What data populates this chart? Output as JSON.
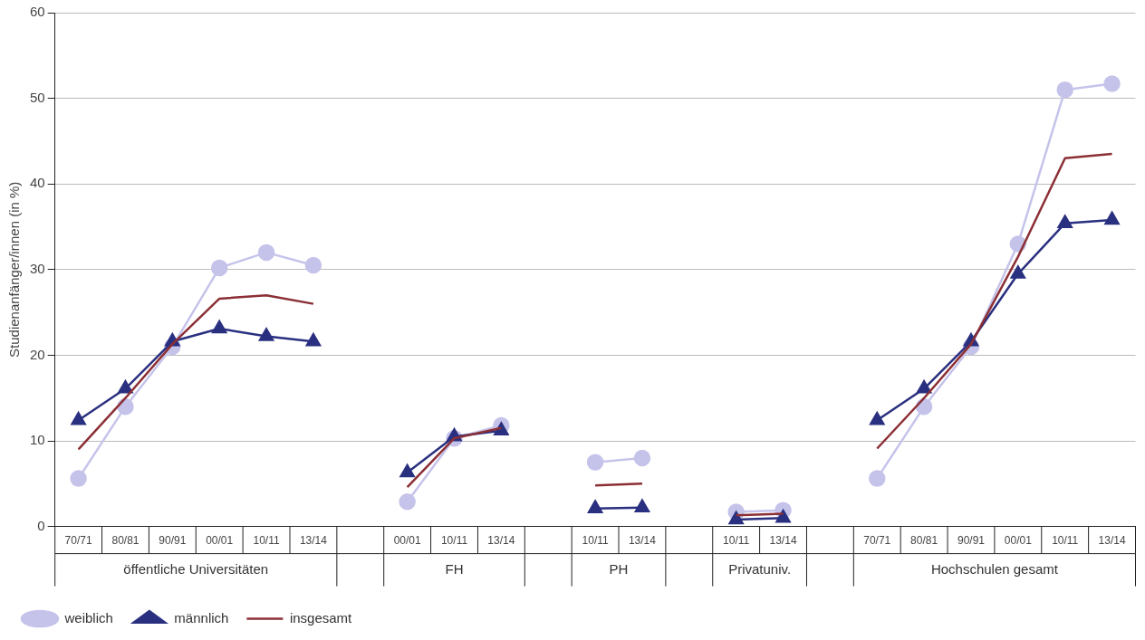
{
  "chart_data": {
    "type": "line",
    "ylabel": "Studienanfänger/innen (in %)",
    "categories": [
      "70/71",
      "80/81",
      "90/91",
      "00/01",
      "10/11",
      "13/14",
      null,
      "00/01",
      "10/11",
      "13/14",
      null,
      "10/11",
      "13/14",
      null,
      "10/11",
      "13/14",
      null,
      "70/71",
      "80/81",
      "90/91",
      "00/01",
      "10/11",
      "13/14"
    ],
    "series": [
      {
        "name": "weiblich",
        "color": "#c5c3ea",
        "marker": "circle",
        "values": [
          5.6,
          14,
          21,
          30.2,
          32,
          30.5,
          null,
          2.9,
          10.3,
          11.8,
          null,
          7.5,
          8,
          null,
          1.7,
          1.9,
          null,
          5.6,
          14,
          21,
          33,
          51,
          51.7
        ]
      },
      {
        "name": "männlich",
        "color": "#2a3080",
        "marker": "triangle",
        "values": [
          12.4,
          16.1,
          21.6,
          23.1,
          22.2,
          21.6,
          null,
          6.3,
          10.5,
          11.2,
          null,
          2.1,
          2.2,
          null,
          0.8,
          1.0,
          null,
          12.4,
          16.1,
          21.6,
          29.5,
          35.4,
          35.8
        ]
      },
      {
        "name": "insgesamt",
        "color": "#8b2f35",
        "marker": "none",
        "values": [
          9,
          15,
          21.3,
          26.6,
          27,
          26,
          null,
          4.6,
          10.3,
          11.5,
          null,
          4.8,
          5,
          null,
          1.3,
          1.5,
          null,
          9.1,
          15,
          21.3,
          31.5,
          43,
          43.5
        ]
      }
    ],
    "annotations": [
      "öffentliche Universitäten",
      "FH",
      "PH",
      "Privatuniv.",
      "Hochschulen gesamt"
    ],
    "ylim": [
      0,
      60
    ],
    "yticks": [
      0,
      10,
      20,
      30,
      40,
      50,
      60
    ],
    "grid": "y",
    "legend": "bottom left"
  }
}
